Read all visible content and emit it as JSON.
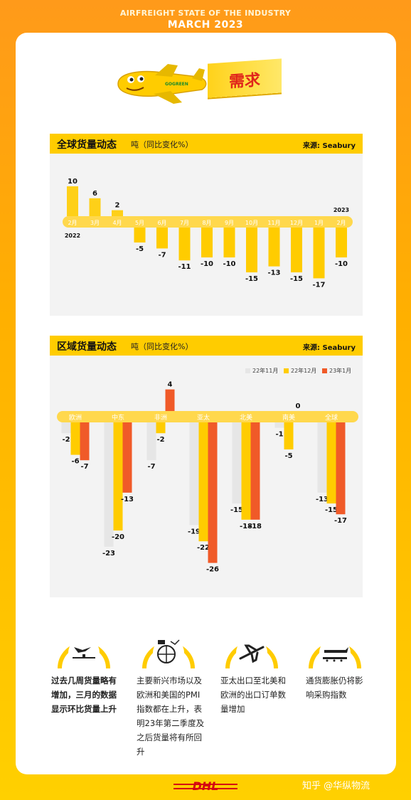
{
  "header": {
    "line1": "AIRFREIGHT STATE OF THE INDUSTRY",
    "line2": "MARCH 2023"
  },
  "banner": {
    "text": "需求",
    "plane_text": "GOGREEN"
  },
  "global_panel": {
    "title": "全球货量动态",
    "unit": "吨（同比变化%）",
    "source": "来源: Seabury"
  },
  "regional_panel": {
    "title": "区域货量动态",
    "unit": "吨（同比变化%）",
    "source": "来源: Seabury"
  },
  "chart_data": [
    {
      "type": "bar",
      "categories": [
        "2月",
        "3月",
        "4月",
        "5月",
        "6月",
        "7月",
        "8月",
        "9月",
        "10月",
        "11月",
        "12月",
        "1月",
        "2月"
      ],
      "values": [
        10,
        6,
        2,
        -5,
        -7,
        -11,
        -10,
        -10,
        -15,
        -13,
        -15,
        -17,
        -10
      ],
      "year_labels": {
        "start": "2022",
        "end": "2023"
      },
      "colors": {
        "positive": "#ffcc00",
        "negative": "#ffcc00"
      }
    },
    {
      "type": "bar",
      "categories": [
        "欧洲",
        "中东",
        "非洲",
        "亚太",
        "北美",
        "南美",
        "全球"
      ],
      "series": [
        {
          "name": "22年11月",
          "values": [
            -2,
            -23,
            -7,
            -19,
            -15,
            -1,
            -13
          ],
          "color": "#e6e6e6"
        },
        {
          "name": "22年12月",
          "values": [
            -6,
            -20,
            -2,
            -22,
            -18,
            -5,
            -15
          ],
          "color": "#ffcc00"
        },
        {
          "name": "23年1月",
          "values": [
            -7,
            -13,
            4,
            -26,
            -18,
            0,
            -17
          ],
          "color": "#f05a28"
        }
      ]
    }
  ],
  "bottom": {
    "icons": [
      "airport-runway-icon",
      "globe-chart-icon",
      "airplane-icon",
      "cargo-conveyor-icon"
    ],
    "items": [
      {
        "text": "过去几周货量略有增加，三月的数据显示环比货量上升"
      },
      {
        "text": "主要新兴市场以及欧洲和美国的PMI指数都在上升，表明23年第二季度及之后货量将有所回升"
      },
      {
        "text": "亚太出口至北美和欧洲的出口订单数量增加"
      },
      {
        "text": "通货膨胀仍将影响采购指数"
      }
    ]
  },
  "footer": {
    "logo": "DHL",
    "watermark": "知乎 @华纵物流"
  }
}
